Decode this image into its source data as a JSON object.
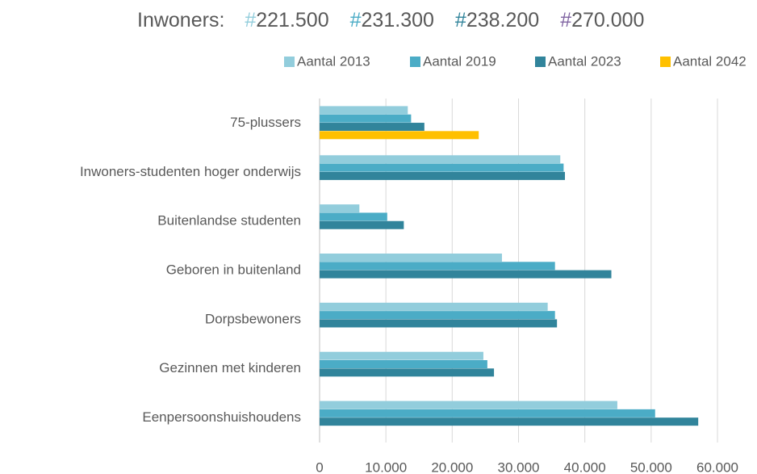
{
  "chart_data": {
    "type": "hbar",
    "header": {
      "label": "Inwoners:",
      "marker": "#",
      "items": [
        {
          "value": 221500,
          "label": "221.500",
          "color": "#92cddc"
        },
        {
          "value": 231300,
          "label": "231.300",
          "color": "#4bacc6"
        },
        {
          "value": 238200,
          "label": "238.200",
          "color": "#31849b"
        },
        {
          "value": 270000,
          "label": "270.000",
          "color": "#8064a2"
        }
      ]
    },
    "categories": [
      "75-plussers",
      "Inwoners-studenten hoger onderwijs",
      "Buitenlandse studenten",
      "Geboren in buitenland",
      "Dorpsbewoners",
      "Gezinnen met kinderen",
      "Eenpersoonshuishoudens"
    ],
    "series": [
      {
        "name": "Aantal 2013",
        "color": "#92cddc",
        "values": [
          13300,
          36300,
          6000,
          27500,
          34400,
          24700,
          44900
        ]
      },
      {
        "name": "Aantal 2019",
        "color": "#4bacc6",
        "values": [
          13800,
          36800,
          10200,
          35500,
          35500,
          25300,
          50600
        ]
      },
      {
        "name": "Aantal 2023",
        "color": "#31849b",
        "values": [
          15800,
          37000,
          12700,
          44000,
          35800,
          26300,
          57100
        ]
      },
      {
        "name": "Aantal 2042",
        "color": "#ffc000",
        "values": [
          24000,
          null,
          null,
          null,
          null,
          null,
          null
        ]
      }
    ],
    "xlim": [
      0,
      60000
    ],
    "xticks": [
      0,
      {
        "value": 10000,
        "label": "10.000"
      },
      {
        "value": 20000,
        "label": "20.000"
      },
      {
        "value": 30000,
        "label": "30.000"
      },
      {
        "value": 40000,
        "label": "40.000"
      },
      {
        "value": 50000,
        "label": "50.000"
      },
      {
        "value": 60000,
        "label": "60.000"
      }
    ],
    "grid": true,
    "legend": "top"
  }
}
